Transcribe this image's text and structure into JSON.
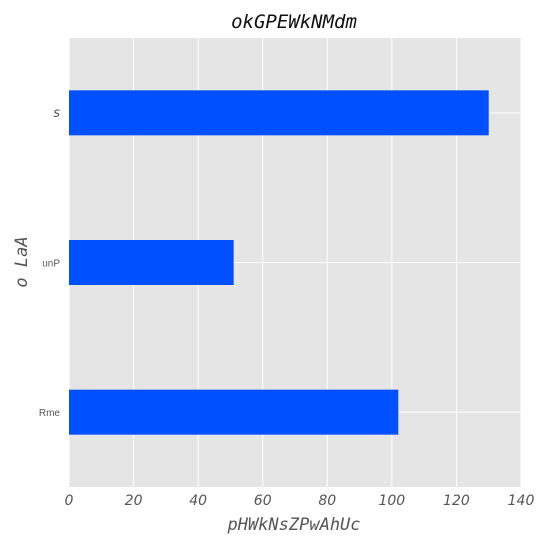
{
  "chart_data": {
    "type": "bar",
    "orientation": "horizontal",
    "title": "okGPEWkNMdm",
    "xlabel": "pHWkNsZPwAhUc",
    "ylabel": "o LaA",
    "categories": [
      "Rme",
      "unP",
      "s"
    ],
    "values": [
      102,
      51,
      130
    ],
    "xlim": [
      0,
      140
    ],
    "xticks": [
      "0",
      "20",
      "40",
      "60",
      "80",
      "100",
      "120",
      "140"
    ],
    "grid": true,
    "bar_color": "#0050ff",
    "background_color": "#e5e5e5"
  }
}
